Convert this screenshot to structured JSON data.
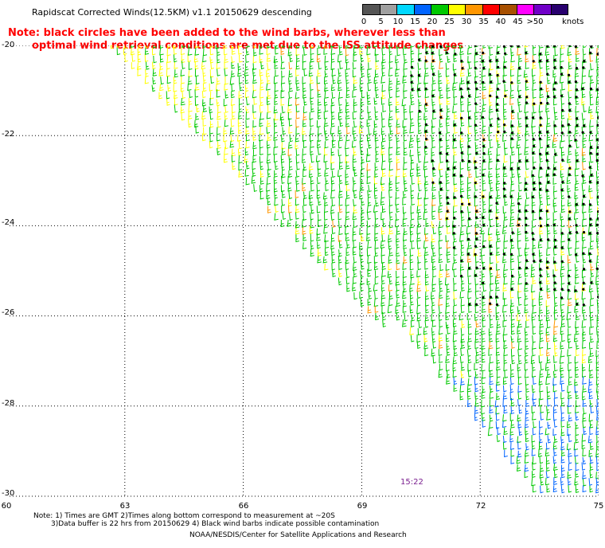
{
  "header": {
    "title": "Rapidscat Corrected Winds(12.5KM) v1.1 20150629 descending",
    "note_line1": "Note: black circles have been added to the wind barbs, wherever less than",
    "note_line2": "optimal wind retrieval conditions are met due to the ISS attitude changes"
  },
  "legend": {
    "unit": "knots",
    "labels": [
      "0",
      "5",
      "10",
      "15",
      "20",
      "25",
      "30",
      "35",
      "40",
      "45",
      ">50"
    ],
    "colors": [
      "#555555",
      "#a0a0a0",
      "#00d8ff",
      "#0064ff",
      "#00c800",
      "#ffff00",
      "#ff9600",
      "#ff0000",
      "#a85000",
      "#ff00ff",
      "#7000c8",
      "#28006e"
    ]
  },
  "map": {
    "lat_labels": [
      "-20",
      "-22",
      "-24",
      "-26",
      "-28",
      "-30"
    ],
    "lon_labels": [
      "60",
      "63",
      "66",
      "69",
      "72",
      "75"
    ],
    "time_label": "15:22"
  },
  "footer": {
    "line1": "Note: 1) Times are GMT 2)Times along bottom correspond to measurement at ~20S",
    "line2": "3)Data buffer is 22 hrs from 20150629 4) Black wind barbs indicate possible contamination",
    "credit": "NOAA/NESDIS/Center for Satellite Applications and Research"
  },
  "chart_data": {
    "type": "scatter",
    "title": "Rapidscat Corrected Winds(12.5KM) v1.1 20150629 descending",
    "x_axis_ticks": [
      60,
      63,
      66,
      69,
      72,
      75
    ],
    "y_axis_ticks": [
      -20,
      -22,
      -24,
      -26,
      -28,
      -30
    ],
    "xlim": [
      60,
      75
    ],
    "ylim": [
      -30,
      -20
    ],
    "grid": true,
    "color_scale_knots": [
      0,
      5,
      10,
      15,
      20,
      25,
      30,
      35,
      40,
      45,
      50
    ],
    "swaths": [
      {
        "name": "",
        "lon_lat_outline": [
          [
            62.5,
            -20
          ],
          [
            71.5,
            -20
          ],
          [
            69.6,
            -26.4
          ]
        ]
      },
      {
        "name": "",
        "lon_lat_outline": [
          [
            70.5,
            -20
          ],
          [
            75,
            -20
          ],
          [
            75,
            -30
          ],
          [
            73.4,
            -30
          ],
          [
            69.7,
            -26
          ]
        ]
      }
    ]
  }
}
